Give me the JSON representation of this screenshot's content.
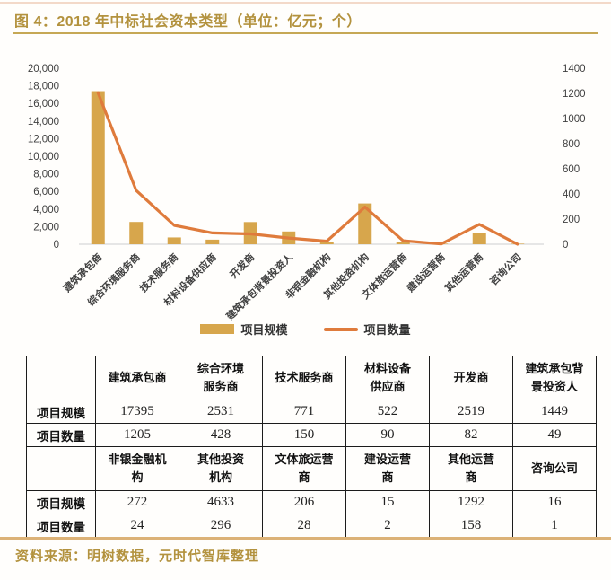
{
  "title": "图 4：2018 年中标社会资本类型（单位：亿元；个）",
  "source": "资料来源：明树数据，元时代智库整理",
  "colors": {
    "title_gold": "#b3923e",
    "title_rule": "#c6a855",
    "bar": "#d7a64c",
    "line": "#df7b3c",
    "axis_text": "#3f3f3f",
    "axis_line": "#d8d8d8",
    "table_border": "#1c1c1c",
    "bottom_rule": "#dcb277"
  },
  "chart_data": {
    "type": "bar+line combo",
    "categories": [
      "建筑承包商",
      "综合环境服务商",
      "技术服务商",
      "材料设备供应商",
      "开发商",
      "建筑承包背景投资人",
      "非银金融机构",
      "其他投资机构",
      "文体旅运营商",
      "建设运营商",
      "其他运营商",
      "咨询公司"
    ],
    "series": [
      {
        "name": "项目规模",
        "type": "bar",
        "axis": "left",
        "values": [
          17395,
          2531,
          771,
          522,
          2519,
          1449,
          272,
          4633,
          206,
          15,
          1292,
          16
        ]
      },
      {
        "name": "项目数量",
        "type": "line",
        "axis": "right",
        "values": [
          1205,
          428,
          150,
          90,
          82,
          49,
          24,
          296,
          28,
          2,
          158,
          1
        ]
      }
    ],
    "left_axis": {
      "min": 0,
      "max": 20000,
      "step": 2000,
      "ticks": [
        "0",
        "2,000",
        "4,000",
        "6,000",
        "8,000",
        "10,000",
        "12,000",
        "14,000",
        "16,000",
        "18,000",
        "20,000"
      ]
    },
    "right_axis": {
      "min": 0,
      "max": 1400,
      "step": 200,
      "ticks": [
        "0",
        "200",
        "400",
        "600",
        "800",
        "1000",
        "1200",
        "1400"
      ]
    },
    "grid": "off",
    "legend_position": "bottom-center"
  },
  "legend": {
    "bar_label": "项目规模",
    "line_label": "项目数量"
  },
  "table": {
    "scale_label": "项目规模",
    "count_label": "项目数量",
    "blocks": [
      {
        "headers": [
          "建筑承包商",
          "综合环境\n服务商",
          "技术服务商",
          "材料设备\n供应商",
          "开发商",
          "建筑承包背\n景投资人"
        ],
        "scale": [
          17395,
          2531,
          771,
          522,
          2519,
          1449
        ],
        "count": [
          1205,
          428,
          150,
          90,
          82,
          49
        ]
      },
      {
        "headers": [
          "非银金融机\n构",
          "其他投资\n机构",
          "文体旅运营\n商",
          "建设运营\n商",
          "其他运营\n商",
          "咨询公司"
        ],
        "scale": [
          272,
          4633,
          206,
          15,
          1292,
          16
        ],
        "count": [
          24,
          296,
          28,
          2,
          158,
          1
        ]
      }
    ]
  }
}
